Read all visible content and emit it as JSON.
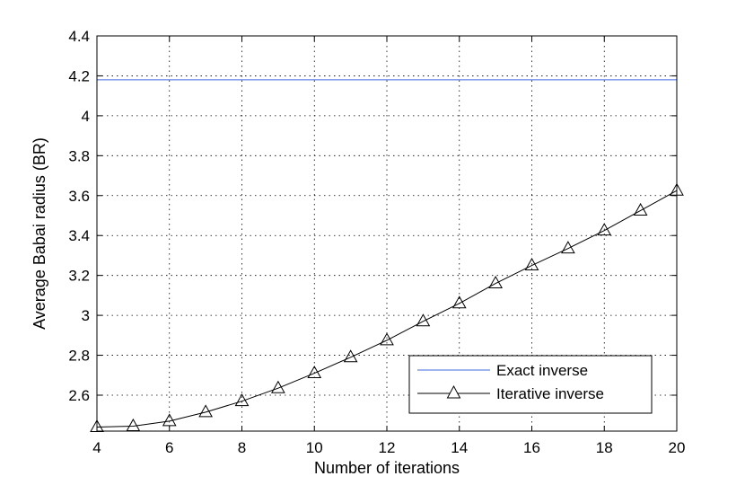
{
  "chart_data": {
    "type": "line",
    "title": "",
    "xlabel": "Number of iterations",
    "ylabel": "Average Babai radius (BR)",
    "xlim": [
      4,
      20
    ],
    "ylim": [
      2.42,
      4.4
    ],
    "xticks": [
      4,
      6,
      8,
      10,
      12,
      14,
      16,
      18,
      20
    ],
    "xtick_labels": [
      "4",
      "6",
      "8",
      "10",
      "12",
      "14",
      "16",
      "18",
      "20"
    ],
    "yticks": [
      2.6,
      2.8,
      3.0,
      3.2,
      3.4,
      3.6,
      3.8,
      4.0,
      4.2,
      4.4
    ],
    "ytick_labels": [
      "2.6",
      "2.8",
      "3",
      "3.2",
      "3.4",
      "3.6",
      "3.8",
      "4",
      "4.2",
      "4.4"
    ],
    "grid": true,
    "legend_position": "bottom-right",
    "series": [
      {
        "name": "Exact inverse",
        "color": "#4169e1",
        "marker": "none",
        "x": [
          4,
          20
        ],
        "y": [
          4.18,
          4.18
        ]
      },
      {
        "name": "Iterative inverse",
        "color": "#000000",
        "marker": "triangle",
        "x": [
          4,
          5,
          6,
          7,
          8,
          9,
          10,
          11,
          12,
          13,
          14,
          15,
          16,
          17,
          18,
          19,
          20
        ],
        "y": [
          2.44,
          2.445,
          2.47,
          2.515,
          2.57,
          2.635,
          2.71,
          2.79,
          2.875,
          2.97,
          3.06,
          3.16,
          3.25,
          3.335,
          3.425,
          3.525,
          3.625
        ]
      }
    ]
  }
}
